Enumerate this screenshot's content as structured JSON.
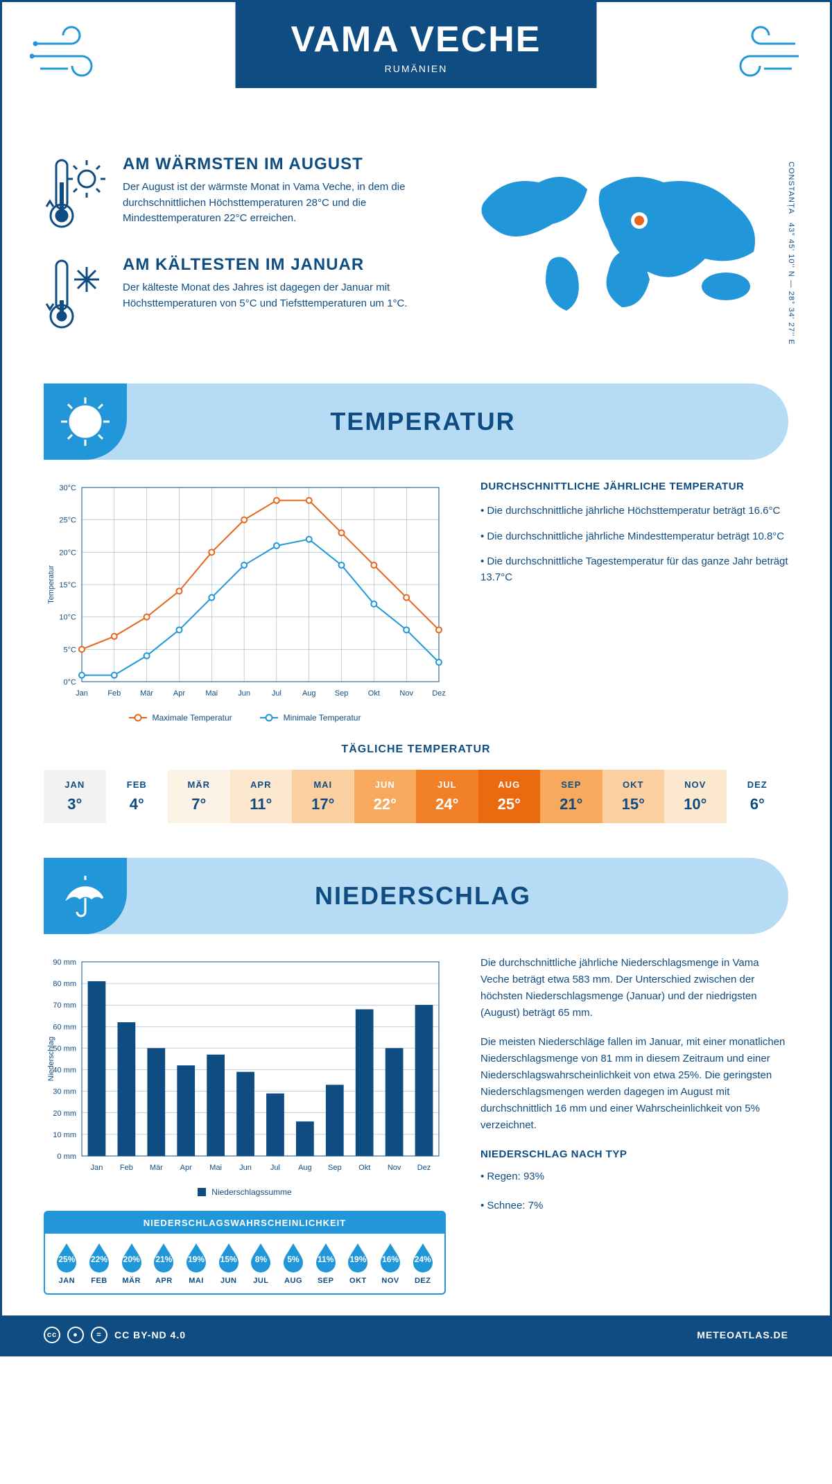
{
  "header": {
    "title": "VAMA VECHE",
    "subtitle": "RUMÄNIEN"
  },
  "intro": {
    "warm": {
      "title": "AM WÄRMSTEN IM AUGUST",
      "text": "Der August ist der wärmste Monat in Vama Veche, in dem die durchschnittlichen Höchsttemperaturen 28°C und die Mindesttemperaturen 22°C erreichen."
    },
    "cold": {
      "title": "AM KÄLTESTEN IM JANUAR",
      "text": "Der kälteste Monat des Jahres ist dagegen der Januar mit Höchsttemperaturen von 5°C und Tiefsttemperaturen um 1°C."
    },
    "coords": "43° 45' 10'' N — 28° 34' 27'' E",
    "region": "CONSTANȚA"
  },
  "temperature": {
    "banner": "TEMPERATUR",
    "chart": {
      "type": "line",
      "ylabel": "Temperatur",
      "ylim": [
        0,
        30
      ],
      "ytick_step": 5,
      "ytick_suffix": "°C",
      "months": [
        "Jan",
        "Feb",
        "Mär",
        "Apr",
        "Mai",
        "Jun",
        "Jul",
        "Aug",
        "Sep",
        "Okt",
        "Nov",
        "Dez"
      ],
      "series": [
        {
          "name": "Maximale Temperatur",
          "color": "#e8661c",
          "values": [
            5,
            7,
            10,
            14,
            20,
            25,
            28,
            28,
            23,
            18,
            13,
            8
          ]
        },
        {
          "name": "Minimale Temperatur",
          "color": "#2196d8",
          "values": [
            1,
            1,
            4,
            8,
            13,
            18,
            21,
            22,
            18,
            12,
            8,
            3
          ]
        }
      ],
      "grid_color": "#0f4c81",
      "background": "#ffffff",
      "line_width": 2,
      "marker": "circle"
    },
    "facts": {
      "title": "DURCHSCHNITTLICHE JÄHRLICHE TEMPERATUR",
      "items": [
        "• Die durchschnittliche jährliche Höchsttemperatur beträgt 16.6°C",
        "• Die durchschnittliche jährliche Mindesttemperatur beträgt 10.8°C",
        "• Die durchschnittliche Tagestemperatur für das ganze Jahr beträgt 13.7°C"
      ]
    },
    "daily": {
      "title": "TÄGLICHE TEMPERATUR",
      "months": [
        "JAN",
        "FEB",
        "MÄR",
        "APR",
        "MAI",
        "JUN",
        "JUL",
        "AUG",
        "SEP",
        "OKT",
        "NOV",
        "DEZ"
      ],
      "values": [
        "3°",
        "4°",
        "7°",
        "11°",
        "17°",
        "22°",
        "24°",
        "25°",
        "21°",
        "15°",
        "10°",
        "6°"
      ],
      "colors": [
        "#f2f2f2",
        "#ffffff",
        "#fdf2e6",
        "#fce7cf",
        "#fbcfa0",
        "#f7a95e",
        "#f28028",
        "#ea6a10",
        "#f7a95e",
        "#fbcfa0",
        "#fce7cf",
        "#ffffff"
      ],
      "text_color": "#0f4c81",
      "hot_text_color": "#ffffff"
    }
  },
  "precipitation": {
    "banner": "NIEDERSCHLAG",
    "chart": {
      "type": "bar",
      "ylabel": "Niederschlag",
      "ylim": [
        0,
        90
      ],
      "ytick_step": 10,
      "ytick_suffix": " mm",
      "months": [
        "Jan",
        "Feb",
        "Mär",
        "Apr",
        "Mai",
        "Jun",
        "Jul",
        "Aug",
        "Sep",
        "Okt",
        "Nov",
        "Dez"
      ],
      "values": [
        81,
        62,
        50,
        42,
        47,
        39,
        29,
        16,
        33,
        68,
        50,
        70
      ],
      "bar_color": "#0f4c81",
      "grid_color": "#0f4c81",
      "legend": "Niederschlagssumme"
    },
    "text": {
      "p1": "Die durchschnittliche jährliche Niederschlagsmenge in Vama Veche beträgt etwa 583 mm. Der Unterschied zwischen der höchsten Niederschlagsmenge (Januar) und der niedrigsten (August) beträgt 65 mm.",
      "p2": "Die meisten Niederschläge fallen im Januar, mit einer monatlichen Niederschlagsmenge von 81 mm in diesem Zeitraum und einer Niederschlagswahrscheinlichkeit von etwa 25%. Die geringsten Niederschlagsmengen werden dagegen im August mit durchschnittlich 16 mm und einer Wahrscheinlichkeit von 5% verzeichnet.",
      "type_title": "NIEDERSCHLAG NACH TYP",
      "type_items": [
        "• Regen: 93%",
        "• Schnee: 7%"
      ]
    },
    "probability": {
      "title": "NIEDERSCHLAGSWAHRSCHEINLICHKEIT",
      "months": [
        "JAN",
        "FEB",
        "MÄR",
        "APR",
        "MAI",
        "JUN",
        "JUL",
        "AUG",
        "SEP",
        "OKT",
        "NOV",
        "DEZ"
      ],
      "values": [
        "25%",
        "22%",
        "20%",
        "21%",
        "19%",
        "15%",
        "8%",
        "5%",
        "11%",
        "19%",
        "16%",
        "24%"
      ],
      "drop_color": "#2196d8"
    }
  },
  "footer": {
    "license": "CC BY-ND 4.0",
    "site": "METEOATLAS.DE"
  },
  "colors": {
    "primary": "#0f4c81",
    "accent": "#2196d8",
    "banner_bg": "#b6dcf5",
    "orange": "#e8661c"
  }
}
